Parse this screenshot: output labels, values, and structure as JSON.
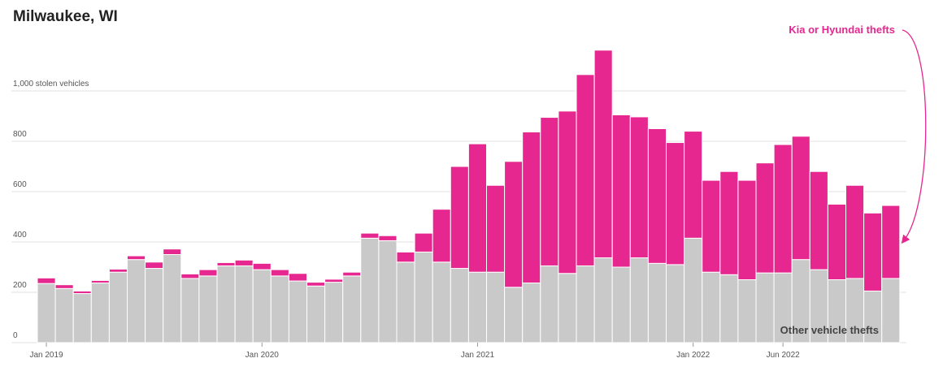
{
  "chart_data": {
    "type": "bar",
    "stacked": true,
    "title": "Milwaukee, WI",
    "ylabel": "",
    "xlabel": "",
    "ylim": [
      0,
      1200
    ],
    "y_ticks": [
      0,
      200,
      400,
      600,
      800,
      1000
    ],
    "y_tick_labels": [
      "0",
      "200",
      "400",
      "600",
      "800",
      "1,000 stolen vehicles"
    ],
    "x_tick_labels": [
      {
        "label": "Jan 2019",
        "index": 0
      },
      {
        "label": "Jan 2020",
        "index": 12
      },
      {
        "label": "Jan 2021",
        "index": 24
      },
      {
        "label": "Jan 2022",
        "index": 36
      },
      {
        "label": "Jun 2022",
        "index": 41
      }
    ],
    "grid": true,
    "categories": [
      "Jan 2019",
      "Feb 2019",
      "Mar 2019",
      "Apr 2019",
      "May 2019",
      "Jun 2019",
      "Jul 2019",
      "Aug 2019",
      "Sep 2019",
      "Oct 2019",
      "Nov 2019",
      "Dec 2019",
      "Jan 2020",
      "Feb 2020",
      "Mar 2020",
      "Apr 2020",
      "May 2020",
      "Jun 2020",
      "Jul 2020",
      "Aug 2020",
      "Sep 2020",
      "Oct 2020",
      "Nov 2020",
      "Dec 2020",
      "Jan 2021",
      "Feb 2021",
      "Mar 2021",
      "Apr 2021",
      "May 2021",
      "Jun 2021",
      "Jul 2021",
      "Aug 2021",
      "Sep 2021",
      "Oct 2021",
      "Nov 2021",
      "Dec 2021",
      "Jan 2022",
      "Feb 2022",
      "Mar 2022",
      "Apr 2022",
      "May 2022",
      "Jun 2022",
      "Jul 2022",
      "Aug 2022",
      "Sep 2022",
      "Oct 2022",
      "Nov 2022",
      "Dec 2022"
    ],
    "series": [
      {
        "name": "Other vehicle thefts",
        "color": "#c9c9c9",
        "values": [
          235,
          215,
          195,
          237,
          280,
          330,
          295,
          350,
          255,
          265,
          305,
          305,
          290,
          265,
          245,
          225,
          240,
          265,
          415,
          405,
          320,
          360,
          320,
          295,
          280,
          280,
          220,
          237,
          305,
          275,
          305,
          337,
          300,
          337,
          315,
          310,
          415,
          280,
          270,
          250,
          277,
          277,
          330,
          290,
          250,
          255,
          205,
          255
        ]
      },
      {
        "name": "Kia or Hyundai thefts",
        "color": "#e5278f",
        "values": [
          22,
          15,
          10,
          10,
          12,
          15,
          25,
          22,
          18,
          25,
          13,
          23,
          25,
          25,
          30,
          15,
          12,
          15,
          20,
          20,
          40,
          75,
          210,
          405,
          510,
          345,
          500,
          600,
          590,
          645,
          760,
          825,
          605,
          560,
          535,
          485,
          425,
          365,
          410,
          395,
          437,
          510,
          490,
          390,
          300,
          370,
          310,
          290
        ]
      }
    ],
    "annotations": [
      {
        "text": "Kia or Hyundai thefts",
        "series": "Kia or Hyundai thefts"
      },
      {
        "text": "Other vehicle thefts",
        "series": "Other vehicle thefts"
      }
    ],
    "legend": "direct-labels"
  }
}
